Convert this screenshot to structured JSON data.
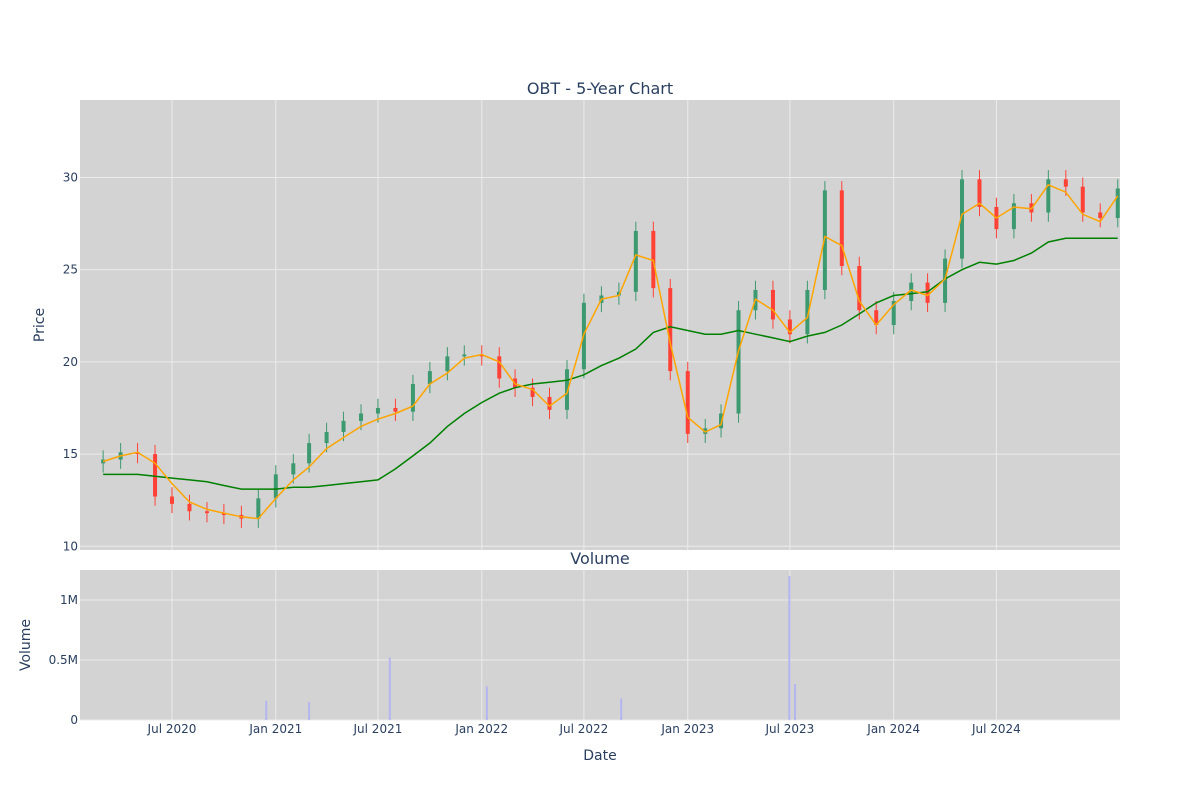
{
  "chart_data": [
    {
      "type": "candlestick",
      "title": "OBT - 5-Year Chart",
      "ylabel": "Price",
      "ylim": [
        9.8,
        34.2
      ],
      "yticks": [
        10,
        15,
        20,
        25,
        30
      ],
      "grid": true,
      "legend": "none",
      "colors": {
        "up": "#3d9970",
        "down": "#ff4136",
        "ma_short": "#ffa500",
        "ma_long": "#008000",
        "plot_bg": "#d3d3d3",
        "grid": "#ebebeb"
      },
      "series": [
        {
          "kind": "candle_close",
          "x": [
            "2020-03-01",
            "2020-04-01",
            "2020-05-01",
            "2020-06-01",
            "2020-07-01",
            "2020-08-01",
            "2020-09-01",
            "2020-10-01",
            "2020-11-01",
            "2020-12-01",
            "2021-01-01",
            "2021-02-01",
            "2021-03-01",
            "2021-04-01",
            "2021-05-01",
            "2021-06-01",
            "2021-07-01",
            "2021-08-01",
            "2021-09-01",
            "2021-10-01",
            "2021-11-01",
            "2021-12-01",
            "2022-01-01",
            "2022-02-01",
            "2022-03-01",
            "2022-04-01",
            "2022-05-01",
            "2022-06-01",
            "2022-07-01",
            "2022-08-01",
            "2022-09-01",
            "2022-10-01",
            "2022-11-01",
            "2022-12-01",
            "2023-01-01",
            "2023-02-01",
            "2023-03-01",
            "2023-04-01",
            "2023-05-01",
            "2023-06-01",
            "2023-07-01",
            "2023-08-01",
            "2023-09-01",
            "2023-10-01",
            "2023-11-01",
            "2023-12-01",
            "2024-01-01",
            "2024-02-01",
            "2024-03-01",
            "2024-04-01",
            "2024-05-01",
            "2024-06-01",
            "2024-07-01",
            "2024-08-01",
            "2024-09-01",
            "2024-10-01",
            "2024-11-01",
            "2024-12-01",
            "2025-01-01",
            "2025-02-01"
          ],
          "close": [
            14.7,
            15.1,
            15.0,
            12.7,
            12.3,
            11.9,
            11.8,
            11.7,
            11.5,
            12.6,
            13.9,
            14.5,
            15.6,
            16.2,
            16.8,
            17.2,
            17.5,
            17.3,
            18.8,
            19.5,
            20.3,
            20.4,
            20.3,
            19.1,
            18.6,
            18.1,
            17.4,
            19.6,
            23.2,
            23.6,
            23.8,
            27.1,
            24.0,
            19.5,
            16.1,
            16.4,
            17.2,
            22.8,
            23.9,
            22.3,
            21.5,
            23.9,
            29.3,
            25.2,
            22.8,
            22.0,
            23.3,
            24.3,
            23.2,
            25.6,
            29.9,
            28.4,
            27.2,
            28.6,
            28.1,
            29.9,
            29.5,
            28.1,
            27.8,
            29.4
          ]
        },
        {
          "kind": "ma_short",
          "x": [
            "2020-03-01",
            "2020-04-01",
            "2020-05-01",
            "2020-06-01",
            "2020-07-01",
            "2020-08-01",
            "2020-09-01",
            "2020-10-01",
            "2020-11-01",
            "2020-12-01",
            "2021-01-01",
            "2021-02-01",
            "2021-03-01",
            "2021-04-01",
            "2021-05-01",
            "2021-06-01",
            "2021-07-01",
            "2021-08-01",
            "2021-09-01",
            "2021-10-01",
            "2021-11-01",
            "2021-12-01",
            "2022-01-01",
            "2022-02-01",
            "2022-03-01",
            "2022-04-01",
            "2022-05-01",
            "2022-06-01",
            "2022-07-01",
            "2022-08-01",
            "2022-09-01",
            "2022-10-01",
            "2022-11-01",
            "2022-12-01",
            "2023-01-01",
            "2023-02-01",
            "2023-03-01",
            "2023-04-01",
            "2023-05-01",
            "2023-06-01",
            "2023-07-01",
            "2023-08-01",
            "2023-09-01",
            "2023-10-01",
            "2023-11-01",
            "2023-12-01",
            "2024-01-01",
            "2024-02-01",
            "2024-03-01",
            "2024-04-01",
            "2024-05-01",
            "2024-06-01",
            "2024-07-01",
            "2024-08-01",
            "2024-09-01",
            "2024-10-01",
            "2024-11-01",
            "2024-12-01",
            "2025-01-01",
            "2025-02-01"
          ],
          "y": [
            14.6,
            14.9,
            15.1,
            14.5,
            13.4,
            12.4,
            12.0,
            11.8,
            11.6,
            11.5,
            12.6,
            13.6,
            14.3,
            15.3,
            15.9,
            16.5,
            16.9,
            17.2,
            17.6,
            18.8,
            19.4,
            20.2,
            20.4,
            20.0,
            18.8,
            18.5,
            17.6,
            18.3,
            21.5,
            23.4,
            23.6,
            25.8,
            25.5,
            21.0,
            17.0,
            16.2,
            16.6,
            20.6,
            23.4,
            22.8,
            21.6,
            22.4,
            26.8,
            26.3,
            23.3,
            22.0,
            23.1,
            23.9,
            23.6,
            24.5,
            28.0,
            28.6,
            27.8,
            28.4,
            28.3,
            29.6,
            29.2,
            28.0,
            27.6,
            29.0
          ]
        },
        {
          "kind": "ma_long",
          "x": [
            "2020-03-01",
            "2020-04-01",
            "2020-05-01",
            "2020-06-01",
            "2020-07-01",
            "2020-08-01",
            "2020-09-01",
            "2020-10-01",
            "2020-11-01",
            "2020-12-01",
            "2021-01-01",
            "2021-02-01",
            "2021-03-01",
            "2021-04-01",
            "2021-05-01",
            "2021-06-01",
            "2021-07-01",
            "2021-08-01",
            "2021-09-01",
            "2021-10-01",
            "2021-11-01",
            "2021-12-01",
            "2022-01-01",
            "2022-02-01",
            "2022-03-01",
            "2022-04-01",
            "2022-05-01",
            "2022-06-01",
            "2022-07-01",
            "2022-08-01",
            "2022-09-01",
            "2022-10-01",
            "2022-11-01",
            "2022-12-01",
            "2023-01-01",
            "2023-02-01",
            "2023-03-01",
            "2023-04-01",
            "2023-05-01",
            "2023-06-01",
            "2023-07-01",
            "2023-08-01",
            "2023-09-01",
            "2023-10-01",
            "2023-11-01",
            "2023-12-01",
            "2024-01-01",
            "2024-02-01",
            "2024-03-01",
            "2024-04-01",
            "2024-05-01",
            "2024-06-01",
            "2024-07-01",
            "2024-08-01",
            "2024-09-01",
            "2024-10-01",
            "2024-11-01",
            "2024-12-01",
            "2025-01-01",
            "2025-02-01"
          ],
          "y": [
            13.9,
            13.9,
            13.9,
            13.8,
            13.7,
            13.6,
            13.5,
            13.3,
            13.1,
            13.1,
            13.1,
            13.2,
            13.2,
            13.3,
            13.4,
            13.5,
            13.6,
            14.2,
            14.9,
            15.6,
            16.5,
            17.2,
            17.8,
            18.3,
            18.6,
            18.8,
            18.9,
            19.0,
            19.3,
            19.8,
            20.2,
            20.7,
            21.6,
            21.9,
            21.7,
            21.5,
            21.5,
            21.7,
            21.5,
            21.3,
            21.1,
            21.4,
            21.6,
            22.0,
            22.6,
            23.2,
            23.6,
            23.7,
            23.8,
            24.5,
            25.0,
            25.4,
            25.3,
            25.5,
            25.9,
            26.5,
            26.7,
            26.7,
            26.7,
            26.7
          ]
        }
      ]
    },
    {
      "type": "bar",
      "title": "Volume",
      "xlabel": "Date",
      "ylabel": "Volume",
      "ylim": [
        0,
        1250000
      ],
      "yticks": [
        "0",
        "0.5M",
        "1M"
      ],
      "ytick_values": [
        0,
        500000,
        1000000
      ],
      "xticks": [
        "Jul 2020",
        "Jan 2021",
        "Jul 2021",
        "Jan 2022",
        "Jul 2022",
        "Jan 2023",
        "Jul 2023",
        "Jan 2024",
        "Jul 2024"
      ],
      "xtick_dates": [
        "2020-07-01",
        "2021-01-01",
        "2021-07-01",
        "2022-01-01",
        "2022-07-01",
        "2023-01-01",
        "2023-07-01",
        "2024-01-01",
        "2024-07-01"
      ],
      "xrange": [
        "2020-01-20",
        "2025-02-05"
      ],
      "colors": {
        "bar": "#b5b5f0",
        "plot_bg": "#d3d3d3",
        "grid": "#ebebeb"
      },
      "series": [
        {
          "name": "",
          "x": [
            "2020-12-15",
            "2021-03-01",
            "2021-07-22",
            "2022-01-10",
            "2022-09-05",
            "2023-06-30",
            "2023-07-10"
          ],
          "values": [
            160000,
            150000,
            520000,
            280000,
            180000,
            1200000,
            300000
          ]
        }
      ]
    }
  ]
}
